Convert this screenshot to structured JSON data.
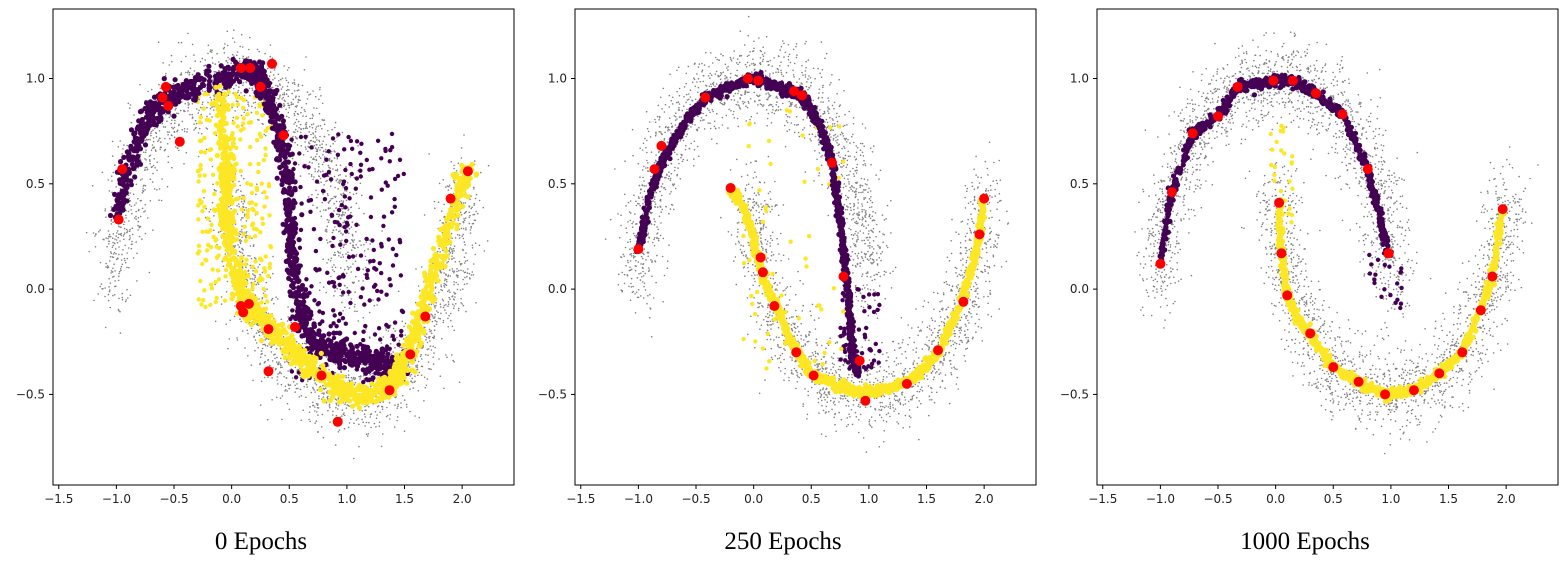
{
  "chart_data": [
    {
      "type": "scatter",
      "title": "0 Epochs",
      "xlim": [
        -1.55,
        2.45
      ],
      "ylim": [
        -0.93,
        1.33
      ],
      "xticks": [
        "−1.5",
        "−1.0",
        "−0.5",
        "0.0",
        "0.5",
        "1.0",
        "1.5",
        "2.0"
      ],
      "yticks": [
        "−0.5",
        "0.0",
        "0.5",
        "1.0"
      ],
      "grid": false,
      "colors": {
        "background_points": "#808080",
        "purple": "#440154",
        "yellow": "#fde725",
        "markers": "#ff0000"
      },
      "purple_curve": [
        [
          -0.98,
          0.36
        ],
        [
          -0.9,
          0.58
        ],
        [
          -0.75,
          0.8
        ],
        [
          -0.62,
          0.88
        ],
        [
          -0.45,
          0.93
        ],
        [
          -0.2,
          0.98
        ],
        [
          0.1,
          1.03
        ],
        [
          0.22,
          1.02
        ],
        [
          0.3,
          0.95
        ],
        [
          0.38,
          0.82
        ],
        [
          0.45,
          0.65
        ],
        [
          0.5,
          0.4
        ],
        [
          0.52,
          0.2
        ],
        [
          0.56,
          0.0
        ],
        [
          0.62,
          -0.15
        ],
        [
          0.72,
          -0.25
        ],
        [
          0.9,
          -0.3
        ],
        [
          1.1,
          -0.32
        ],
        [
          1.3,
          -0.35
        ],
        [
          1.5,
          -0.38
        ]
      ],
      "purple_cloud": {
        "x_range": [
          0.5,
          1.5
        ],
        "y_range": [
          -0.45,
          0.75
        ]
      },
      "yellow_curve": [
        [
          -0.1,
          0.9
        ],
        [
          -0.05,
          0.65
        ],
        [
          -0.05,
          0.45
        ],
        [
          -0.05,
          0.3
        ],
        [
          0.05,
          0.05
        ],
        [
          0.1,
          -0.06
        ],
        [
          0.2,
          -0.12
        ],
        [
          0.4,
          -0.22
        ],
        [
          0.6,
          -0.32
        ],
        [
          0.8,
          -0.42
        ],
        [
          1.0,
          -0.5
        ],
        [
          1.2,
          -0.5
        ],
        [
          1.4,
          -0.45
        ],
        [
          1.5,
          -0.35
        ],
        [
          1.6,
          -0.2
        ],
        [
          1.7,
          0.0
        ],
        [
          1.85,
          0.25
        ],
        [
          2.0,
          0.5
        ],
        [
          2.05,
          0.55
        ]
      ],
      "yellow_cloud": {
        "x_range": [
          -0.3,
          0.35
        ],
        "y_range": [
          -0.1,
          0.95
        ]
      },
      "markers": [
        [
          -0.98,
          0.33
        ],
        [
          -0.95,
          0.57
        ],
        [
          -0.6,
          0.91
        ],
        [
          -0.57,
          0.96
        ],
        [
          -0.55,
          0.87
        ],
        [
          -0.45,
          0.7
        ],
        [
          0.08,
          1.05
        ],
        [
          0.16,
          1.05
        ],
        [
          0.25,
          0.96
        ],
        [
          0.35,
          1.07
        ],
        [
          0.45,
          0.73
        ],
        [
          0.08,
          -0.08
        ],
        [
          0.1,
          -0.11
        ],
        [
          0.15,
          -0.07
        ],
        [
          0.32,
          -0.19
        ],
        [
          0.32,
          -0.39
        ],
        [
          0.55,
          -0.18
        ],
        [
          0.78,
          -0.41
        ],
        [
          0.92,
          -0.63
        ],
        [
          1.37,
          -0.48
        ],
        [
          1.55,
          -0.31
        ],
        [
          1.68,
          -0.13
        ],
        [
          1.9,
          0.43
        ],
        [
          2.05,
          0.56
        ]
      ]
    },
    {
      "type": "scatter",
      "title": "250 Epochs",
      "xlim": [
        -1.55,
        2.45
      ],
      "ylim": [
        -0.93,
        1.33
      ],
      "xticks": [
        "−1.5",
        "−1.0",
        "−0.5",
        "0.0",
        "0.5",
        "1.0",
        "1.5",
        "2.0"
      ],
      "yticks": [
        "−0.5",
        "0.0",
        "0.5",
        "1.0"
      ],
      "grid": false,
      "colors": {
        "background_points": "#808080",
        "purple": "#440154",
        "yellow": "#fde725",
        "markers": "#ff0000"
      },
      "purple_curve": [
        [
          -1.0,
          0.19
        ],
        [
          -0.9,
          0.45
        ],
        [
          -0.8,
          0.6
        ],
        [
          -0.72,
          0.68
        ],
        [
          -0.55,
          0.82
        ],
        [
          -0.42,
          0.91
        ],
        [
          -0.2,
          0.96
        ],
        [
          0.0,
          1.0
        ],
        [
          0.08,
          0.99
        ],
        [
          0.25,
          0.95
        ],
        [
          0.38,
          0.93
        ],
        [
          0.45,
          0.9
        ],
        [
          0.6,
          0.75
        ],
        [
          0.68,
          0.6
        ],
        [
          0.73,
          0.4
        ],
        [
          0.78,
          0.2
        ],
        [
          0.8,
          0.05
        ],
        [
          0.84,
          -0.15
        ],
        [
          0.86,
          -0.3
        ],
        [
          0.9,
          -0.4
        ]
      ],
      "purple_cloud": {
        "x_range": [
          0.75,
          1.1
        ],
        "y_range": [
          -0.4,
          0.0
        ]
      },
      "yellow_curve": [
        [
          -0.2,
          0.48
        ],
        [
          -0.1,
          0.4
        ],
        [
          0.0,
          0.25
        ],
        [
          0.05,
          0.12
        ],
        [
          0.12,
          0.0
        ],
        [
          0.2,
          -0.08
        ],
        [
          0.3,
          -0.22
        ],
        [
          0.4,
          -0.32
        ],
        [
          0.5,
          -0.4
        ],
        [
          0.7,
          -0.45
        ],
        [
          0.9,
          -0.49
        ],
        [
          1.1,
          -0.48
        ],
        [
          1.35,
          -0.44
        ],
        [
          1.5,
          -0.36
        ],
        [
          1.62,
          -0.28
        ],
        [
          1.8,
          -0.07
        ],
        [
          1.9,
          0.12
        ],
        [
          1.96,
          0.27
        ],
        [
          2.0,
          0.43
        ]
      ],
      "yellow_cloud": {
        "x_range": [
          -0.1,
          0.8
        ],
        "y_range": [
          -0.45,
          0.85
        ]
      },
      "markers": [
        [
          -1.0,
          0.19
        ],
        [
          -0.86,
          0.57
        ],
        [
          -0.8,
          0.68
        ],
        [
          -0.42,
          0.91
        ],
        [
          -0.05,
          1.0
        ],
        [
          0.04,
          0.99
        ],
        [
          0.35,
          0.94
        ],
        [
          0.42,
          0.92
        ],
        [
          0.68,
          0.6
        ],
        [
          0.78,
          0.06
        ],
        [
          0.92,
          -0.34
        ],
        [
          0.97,
          -0.53
        ],
        [
          -0.2,
          0.48
        ],
        [
          0.06,
          0.15
        ],
        [
          0.08,
          0.08
        ],
        [
          0.18,
          -0.08
        ],
        [
          0.37,
          -0.3
        ],
        [
          0.52,
          -0.41
        ],
        [
          1.33,
          -0.45
        ],
        [
          1.6,
          -0.29
        ],
        [
          1.82,
          -0.06
        ],
        [
          1.96,
          0.26
        ],
        [
          2.0,
          0.43
        ]
      ]
    },
    {
      "type": "scatter",
      "title": "1000 Epochs",
      "xlim": [
        -1.55,
        2.45
      ],
      "ylim": [
        -0.93,
        1.33
      ],
      "xticks": [
        "−1.5",
        "−1.0",
        "−0.5",
        "0.0",
        "0.5",
        "1.0",
        "1.5",
        "2.0"
      ],
      "yticks": [
        "−0.5",
        "0.0",
        "0.5",
        "1.0"
      ],
      "grid": false,
      "colors": {
        "background_points": "#808080",
        "purple": "#440154",
        "yellow": "#fde725",
        "markers": "#ff0000"
      },
      "purple_curve": [
        [
          -1.0,
          0.12
        ],
        [
          -0.9,
          0.46
        ],
        [
          -0.72,
          0.74
        ],
        [
          -0.5,
          0.82
        ],
        [
          -0.33,
          0.96
        ],
        [
          -0.1,
          0.98
        ],
        [
          0.0,
          0.99
        ],
        [
          0.15,
          0.99
        ],
        [
          0.35,
          0.93
        ],
        [
          0.58,
          0.83
        ],
        [
          0.8,
          0.57
        ],
        [
          0.9,
          0.35
        ],
        [
          0.98,
          0.17
        ]
      ],
      "purple_cloud": {
        "x_range": [
          0.8,
          1.1
        ],
        "y_range": [
          -0.1,
          0.2
        ]
      },
      "yellow_curve": [
        [
          0.03,
          0.41
        ],
        [
          0.05,
          0.17
        ],
        [
          0.1,
          -0.03
        ],
        [
          0.2,
          -0.15
        ],
        [
          0.3,
          -0.22
        ],
        [
          0.5,
          -0.37
        ],
        [
          0.7,
          -0.44
        ],
        [
          0.95,
          -0.5
        ],
        [
          1.2,
          -0.48
        ],
        [
          1.42,
          -0.4
        ],
        [
          1.62,
          -0.3
        ],
        [
          1.78,
          -0.1
        ],
        [
          1.88,
          0.06
        ],
        [
          1.97,
          0.38
        ]
      ],
      "yellow_cloud": {
        "x_range": [
          -0.05,
          0.15
        ],
        "y_range": [
          0.3,
          0.8
        ]
      },
      "markers": [
        [
          -1.0,
          0.12
        ],
        [
          -0.9,
          0.46
        ],
        [
          -0.72,
          0.74
        ],
        [
          -0.5,
          0.82
        ],
        [
          -0.33,
          0.96
        ],
        [
          -0.02,
          0.99
        ],
        [
          0.15,
          0.99
        ],
        [
          0.35,
          0.93
        ],
        [
          0.58,
          0.83
        ],
        [
          0.8,
          0.57
        ],
        [
          0.98,
          0.17
        ],
        [
          0.03,
          0.41
        ],
        [
          0.05,
          0.17
        ],
        [
          0.1,
          -0.03
        ],
        [
          0.3,
          -0.21
        ],
        [
          0.5,
          -0.37
        ],
        [
          0.72,
          -0.44
        ],
        [
          0.95,
          -0.5
        ],
        [
          1.2,
          -0.48
        ],
        [
          1.42,
          -0.4
        ],
        [
          1.62,
          -0.3
        ],
        [
          1.78,
          -0.1
        ],
        [
          1.88,
          0.06
        ],
        [
          1.97,
          0.38
        ]
      ]
    }
  ]
}
